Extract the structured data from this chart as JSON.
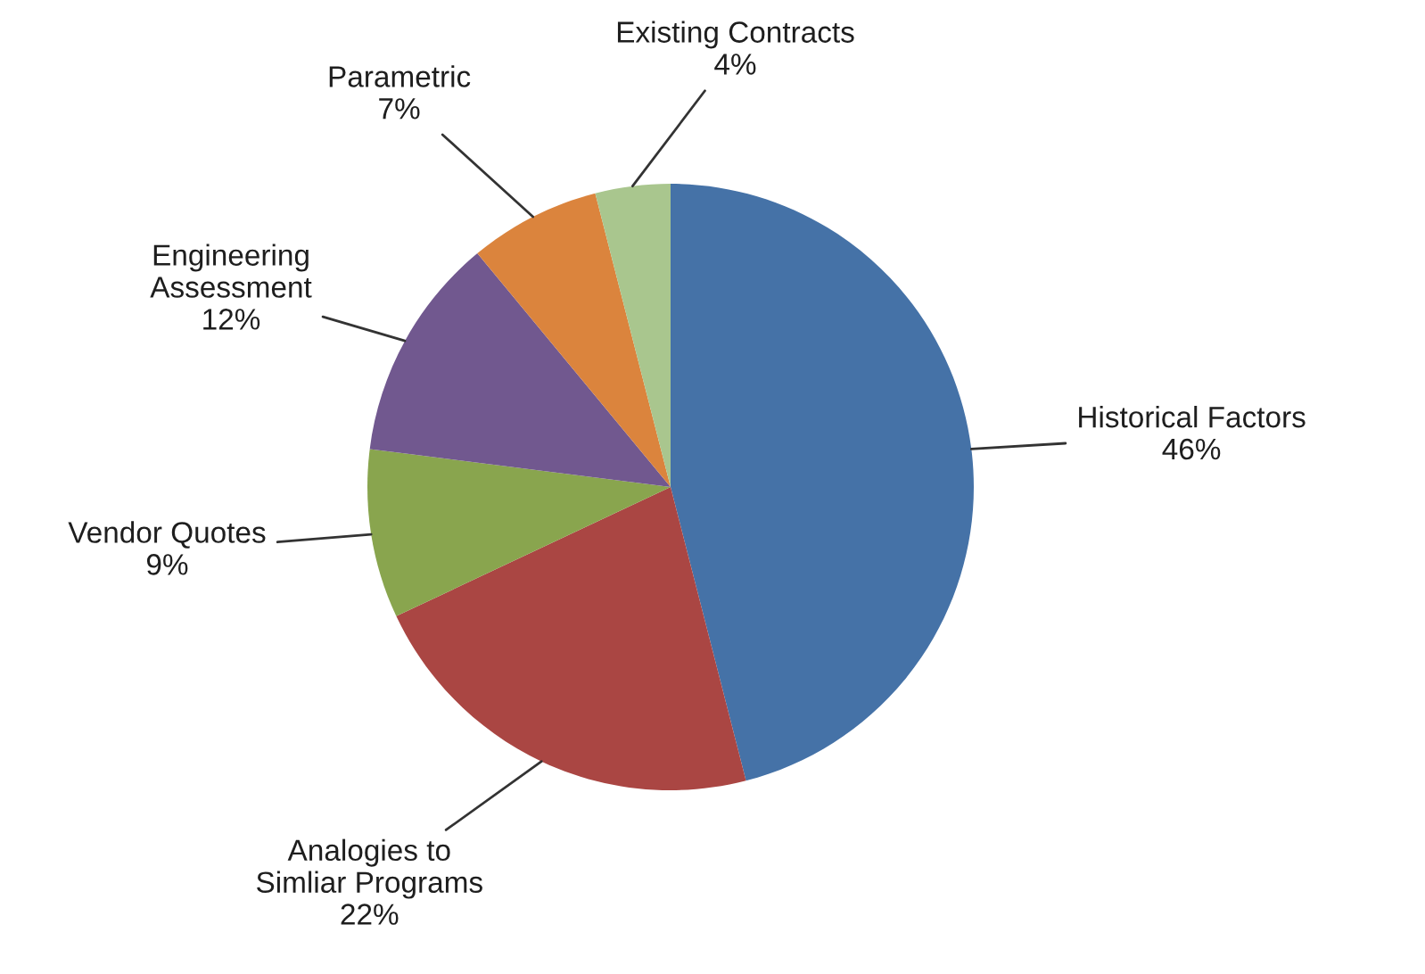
{
  "chart_data": {
    "type": "pie",
    "categories": [
      "Historical Factors",
      "Analogies to\nSimliar Programs",
      "Vendor Quotes",
      "Engineering\nAssessment",
      "Parametric",
      "Existing Contracts"
    ],
    "values": [
      46,
      22,
      9,
      12,
      7,
      4
    ],
    "value_labels": [
      "46%",
      "22%",
      "9%",
      "12%",
      "7%",
      "4%"
    ],
    "colors": [
      "#4572a7",
      "#aa4643",
      "#89a54e",
      "#71588f",
      "#db843d",
      "#a9c68e"
    ]
  }
}
